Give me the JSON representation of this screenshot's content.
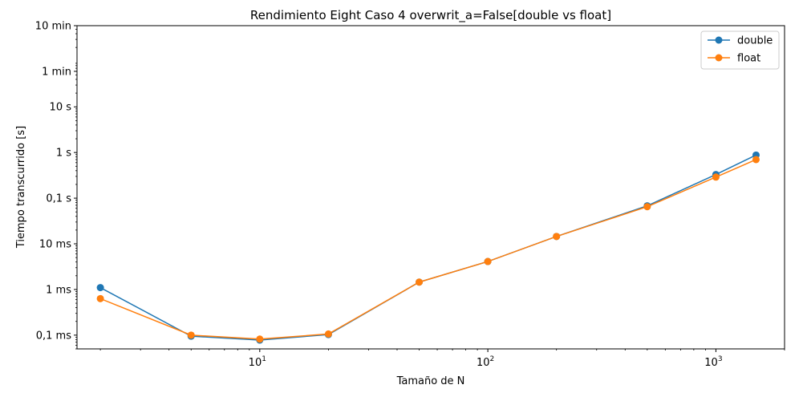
{
  "chart_data": {
    "type": "line",
    "title": "Rendimiento Eight Caso 4 overwrit_a=False[double vs float]",
    "xlabel": "Tamaño de N",
    "ylabel": "Tiempo transcurrido [s]",
    "xscale": "log",
    "yscale": "log",
    "xlim": [
      1.58,
      2000
    ],
    "ylim": [
      5e-05,
      600
    ],
    "x_ticks": [
      {
        "value": 10,
        "base": "10",
        "exp": "1"
      },
      {
        "value": 100,
        "base": "10",
        "exp": "2"
      },
      {
        "value": 1000,
        "base": "10",
        "exp": "3"
      }
    ],
    "y_ticks": [
      {
        "value": 0.0001,
        "label": "0,1 ms"
      },
      {
        "value": 0.001,
        "label": "1 ms"
      },
      {
        "value": 0.01,
        "label": "10 ms"
      },
      {
        "value": 0.1,
        "label": "0,1 s"
      },
      {
        "value": 1,
        "label": "1 s"
      },
      {
        "value": 10,
        "label": "10 s"
      },
      {
        "value": 60,
        "label": "1 min"
      },
      {
        "value": 600,
        "label": "10 min"
      }
    ],
    "x": [
      2,
      5,
      10,
      20,
      50,
      100,
      200,
      500,
      1000,
      1500
    ],
    "series": [
      {
        "name": "double",
        "color": "#1f77b4",
        "values": [
          0.0011,
          9.5e-05,
          7.8e-05,
          0.000103,
          0.00145,
          0.0041,
          0.0145,
          0.068,
          0.33,
          0.88
        ]
      },
      {
        "name": "float",
        "color": "#ff7f0e",
        "values": [
          0.00063,
          0.0001,
          8.2e-05,
          0.000106,
          0.00145,
          0.0041,
          0.0145,
          0.065,
          0.29,
          0.7
        ]
      }
    ],
    "legend": "top-right",
    "grid": false
  }
}
